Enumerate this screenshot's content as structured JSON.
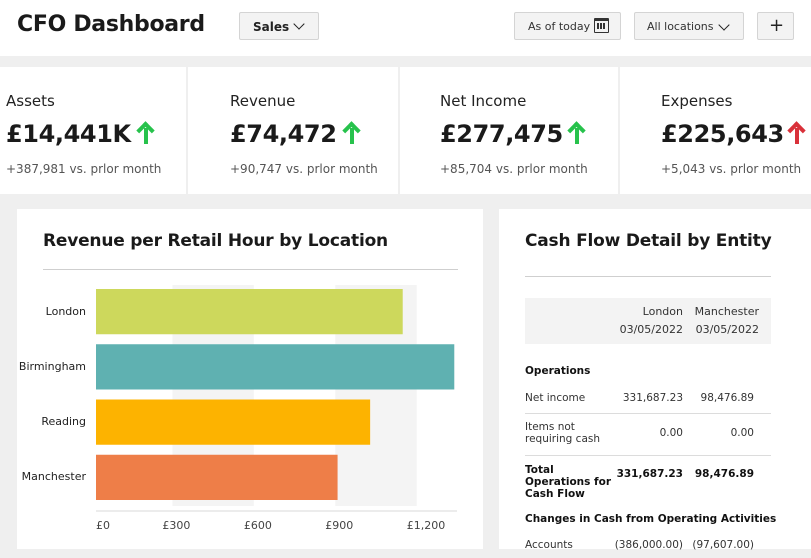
{
  "header": {
    "title": "CFO Dashboard",
    "sales_dropdown": "Sales",
    "date_filter": "As of today",
    "location_filter": "All locations",
    "add_label": "+"
  },
  "kpis": [
    {
      "label": "Assets",
      "value": "£14,441K",
      "delta": "+387,981 vs. prlor month",
      "trend": "up",
      "trend_color": "#27c24c"
    },
    {
      "label": "Revenue",
      "value": "£74,472",
      "delta": "+90,747 vs. prlor month",
      "trend": "up",
      "trend_color": "#27c24c"
    },
    {
      "label": "Net Income",
      "value": "£277,475",
      "delta": "+85,704 vs. prlor month",
      "trend": "up",
      "trend_color": "#27c24c"
    },
    {
      "label": "Expenses",
      "value": "£225,643",
      "delta": "+5,043 vs. prlor month",
      "trend": "up",
      "trend_color": "#d9313a"
    }
  ],
  "revenue_panel": {
    "title": "Revenue per Retail Hour by Location"
  },
  "chart_data": {
    "type": "bar",
    "orientation": "horizontal",
    "title": "Revenue per Retail Hour by Location",
    "categories": [
      "London",
      "Birmingham",
      "Reading",
      "Manchester"
    ],
    "values": [
      1130,
      1320,
      1010,
      890
    ],
    "colors": [
      "#cdd85c",
      "#5fb1b1",
      "#fdb300",
      "#ee7e48"
    ],
    "xticks": [
      0,
      300,
      600,
      900,
      1200
    ],
    "xtick_labels": [
      "£0",
      "£300",
      "£600",
      "£900",
      "£1,200"
    ],
    "xlim": [
      0,
      1330
    ],
    "grid": "alternating vertical bands"
  },
  "cashflow": {
    "title": "Cash Flow Detail by Entity",
    "columns": [
      {
        "name": "London",
        "date": "03/05/2022"
      },
      {
        "name": "Manchester",
        "date": "03/05/2022"
      }
    ],
    "sections": [
      {
        "heading": "Operations"
      },
      {
        "heading": "Changes in Cash from Operating Activities"
      }
    ],
    "rows": [
      {
        "label": "Net income",
        "london": "331,687.23",
        "manchester": "98,476.89"
      },
      {
        "label": "Items not requiring cash",
        "london": "0.00",
        "manchester": "0.00"
      },
      {
        "label": "Total Operations for Cash Flow",
        "london": "331,687.23",
        "manchester": "98,476.89"
      },
      {
        "label": "Accounts",
        "london": "(386,000.00)",
        "manchester": "(97,607.00)"
      }
    ]
  }
}
